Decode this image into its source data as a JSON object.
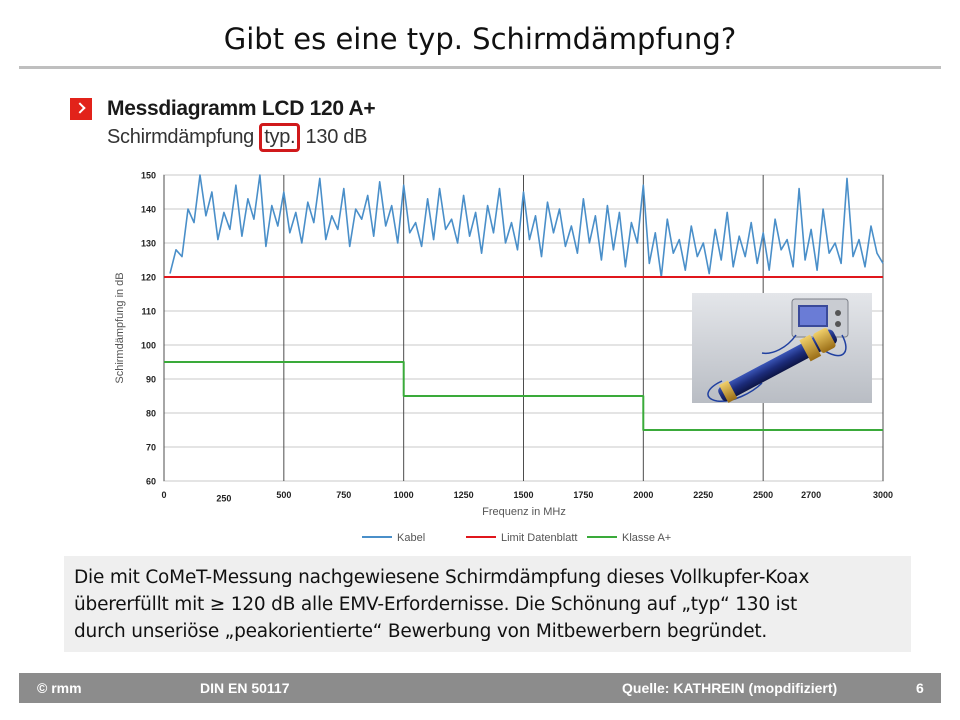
{
  "slide": {
    "title": "Gibt es eine typ. Schirmdämpfung?"
  },
  "figure": {
    "title": "Messdiagramm LCD 120 A+",
    "subtitle_prefix": "Schirmdämpfung ",
    "subtitle_highlight": "typ.",
    "subtitle_suffix": " 130 dB",
    "photo_icon": "measurement-setup-photo"
  },
  "chart_data": {
    "type": "line",
    "xlabel": "Frequenz in MHz",
    "ylabel": "Schirmdämpfung in dB",
    "xlim": [
      0,
      3000
    ],
    "ylim": [
      60,
      150
    ],
    "xticks": [
      "0",
      "250",
      "500",
      "750",
      "1000",
      "1250",
      "1500",
      "1750",
      "2000",
      "2250",
      "2500",
      "2700",
      "3000"
    ],
    "yticks": [
      "150",
      "140",
      "130",
      "120",
      "110",
      "100",
      "90",
      "80",
      "70",
      "60"
    ],
    "grid": true,
    "legend_position": "bottom",
    "series": [
      {
        "name": "Kabel",
        "color": "#4a8fc9",
        "x": [
          25,
          50,
          75,
          100,
          125,
          150,
          175,
          200,
          225,
          250,
          275,
          300,
          325,
          350,
          375,
          400,
          425,
          450,
          475,
          500,
          525,
          550,
          575,
          600,
          625,
          650,
          675,
          700,
          725,
          750,
          775,
          800,
          825,
          850,
          875,
          900,
          925,
          950,
          975,
          1000,
          1025,
          1050,
          1075,
          1100,
          1125,
          1150,
          1175,
          1200,
          1225,
          1250,
          1275,
          1300,
          1325,
          1350,
          1375,
          1400,
          1425,
          1450,
          1475,
          1500,
          1525,
          1550,
          1575,
          1600,
          1625,
          1650,
          1675,
          1700,
          1725,
          1750,
          1775,
          1800,
          1825,
          1850,
          1875,
          1900,
          1925,
          1950,
          1975,
          2000,
          2025,
          2050,
          2075,
          2100,
          2125,
          2150,
          2175,
          2200,
          2225,
          2250,
          2275,
          2300,
          2325,
          2350,
          2375,
          2400,
          2425,
          2450,
          2475,
          2500,
          2525,
          2550,
          2575,
          2600,
          2625,
          2650,
          2675,
          2700,
          2725,
          2750,
          2775,
          2800,
          2825,
          2850,
          2875,
          2900,
          2925,
          2950,
          2975,
          3000
        ],
        "values": [
          121,
          128,
          126,
          140,
          136,
          150,
          138,
          145,
          131,
          139,
          134,
          147,
          132,
          143,
          137,
          150,
          129,
          141,
          135,
          145,
          133,
          139,
          130,
          142,
          136,
          149,
          131,
          138,
          134,
          146,
          129,
          140,
          137,
          144,
          132,
          148,
          135,
          141,
          130,
          147,
          133,
          136,
          129,
          143,
          131,
          146,
          134,
          137,
          130,
          144,
          132,
          139,
          127,
          141,
          133,
          146,
          130,
          136,
          128,
          145,
          131,
          138,
          126,
          142,
          133,
          140,
          129,
          135,
          127,
          143,
          130,
          138,
          125,
          141,
          128,
          139,
          123,
          136,
          130,
          147,
          124,
          133,
          120,
          137,
          127,
          131,
          122,
          135,
          126,
          130,
          121,
          134,
          125,
          139,
          123,
          132,
          126,
          136,
          124,
          133,
          122,
          137,
          128,
          131,
          123,
          146,
          125,
          134,
          122,
          140,
          127,
          130,
          124,
          149,
          126,
          131,
          123,
          135,
          127,
          124
        ]
      },
      {
        "name": "Limit Datenblatt",
        "color": "#e0161c",
        "x": [
          0,
          3000
        ],
        "values": [
          120,
          120
        ]
      },
      {
        "name": "Klasse A+",
        "color": "#3aaa3a",
        "x": [
          0,
          1000,
          1000,
          2000,
          2000,
          3000
        ],
        "values": [
          95,
          95,
          85,
          85,
          75,
          75
        ]
      }
    ]
  },
  "note": {
    "line1": "Die mit CoMeT-Messung nachgewiesene Schirmdämpfung dieses Vollkupfer-Koax",
    "line2": "übererfüllt mit ≥ 120 dB alle EMV-Erfordernisse. Die Schönung auf „typ“ 130 ist",
    "line3": "durch unseriöse „peakorientierte“ Bewerbung von Mitbewerbern begründet."
  },
  "footer": {
    "copyright": "© rmm",
    "standard": "DIN EN 50117",
    "source": "Quelle: KATHREIN (mopdifiziert)",
    "page": "6"
  }
}
